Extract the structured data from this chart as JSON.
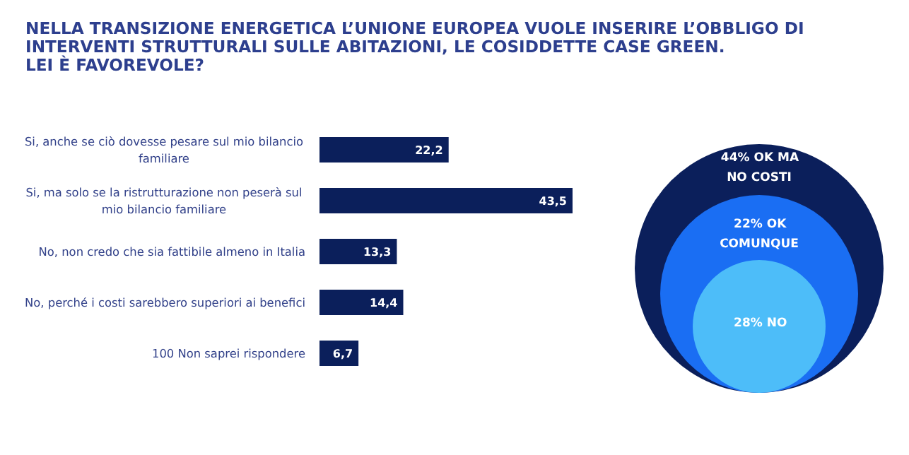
{
  "chart_data": [
    {
      "type": "bar",
      "orientation": "horizontal",
      "title": "NELLA TRANSIZIONE ENERGETICA L’UNIONE EUROPEA VUOLE INSERIRE L’OBBLIGO DI\nINTERVENTI STRUTTURALI SULLE ABITAZIONI, LE COSIDDETTE CASE GREEN.\nLEI È FAVOREVOLE?",
      "categories": [
        "Si, anche se ciò dovesse pesare sul mio bilancio\nfamiliare",
        "Si, ma solo se la ristrutturazione non peserà sul\nmio bilancio familiare",
        "No, non credo che sia fattibile almeno in Italia",
        "No, perché i costi sarebbero superiori ai benefici",
        "100  Non saprei rispondere"
      ],
      "values": [
        22.2,
        43.5,
        13.3,
        14.4,
        6.7
      ],
      "value_labels": [
        "22,2",
        "43,5",
        "13,3",
        "14,4",
        "6,7"
      ],
      "color": "#0b1f5b"
    },
    {
      "type": "other",
      "categories": [
        "% OK MA\nNO COSTI",
        "% OK\nCOMUNQUE",
        "% NO"
      ],
      "values": [
        44,
        22,
        28
      ],
      "data_labels": true,
      "colors": [
        "#0b1f5b",
        "#1a6ef3",
        "#4dbdf9"
      ]
    }
  ]
}
